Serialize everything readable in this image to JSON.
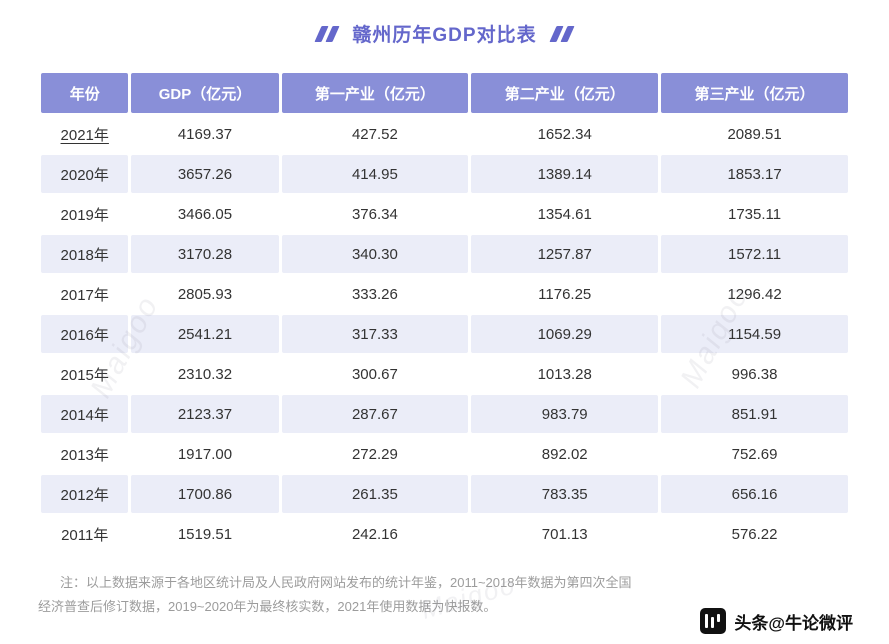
{
  "title": "赣州历年GDP对比表",
  "watermark": "Maigoo",
  "colors": {
    "accent": "#6467cb",
    "header_bg": "#898fd8",
    "row_alt_bg": "#ebedf8",
    "note_text": "#9c9c9c",
    "credit_text": "#111111"
  },
  "table": {
    "headers": [
      "年份",
      "GDP（亿元）",
      "第一产业（亿元）",
      "第二产业（亿元）",
      "第三产业（亿元）"
    ],
    "rows": [
      {
        "cells": [
          "2021年",
          "4169.37",
          "427.52",
          "1652.34",
          "2089.51"
        ],
        "underlined": true
      },
      {
        "cells": [
          "2020年",
          "3657.26",
          "414.95",
          "1389.14",
          "1853.17"
        ]
      },
      {
        "cells": [
          "2019年",
          "3466.05",
          "376.34",
          "1354.61",
          "1735.11"
        ]
      },
      {
        "cells": [
          "2018年",
          "3170.28",
          "340.30",
          "1257.87",
          "1572.11"
        ]
      },
      {
        "cells": [
          "2017年",
          "2805.93",
          "333.26",
          "1176.25",
          "1296.42"
        ]
      },
      {
        "cells": [
          "2016年",
          "2541.21",
          "317.33",
          "1069.29",
          "1154.59"
        ]
      },
      {
        "cells": [
          "2015年",
          "2310.32",
          "300.67",
          "1013.28",
          "996.38"
        ]
      },
      {
        "cells": [
          "2014年",
          "2123.37",
          "287.67",
          "983.79",
          "851.91"
        ]
      },
      {
        "cells": [
          "2013年",
          "1917.00",
          "272.29",
          "892.02",
          "752.69"
        ]
      },
      {
        "cells": [
          "2012年",
          "1700.86",
          "261.35",
          "783.35",
          "656.16"
        ]
      },
      {
        "cells": [
          "2011年",
          "1519.51",
          "242.16",
          "701.13",
          "576.22"
        ]
      }
    ]
  },
  "note": "注：以上数据来源于各地区统计局及人民政府网站发布的统计年鉴，2011~2018年数据为第四次全国经济普查后修订数据，2019~2020年为最终核实数，2021年使用数据为快报数。",
  "footer": {
    "credit": "头条@牛论微评"
  },
  "chart_data": {
    "type": "table",
    "title": "赣州历年GDP对比表",
    "columns": [
      "年份",
      "GDP（亿元）",
      "第一产业（亿元）",
      "第二产业（亿元）",
      "第三产业（亿元）"
    ],
    "rows": [
      [
        "2021年",
        4169.37,
        427.52,
        1652.34,
        2089.51
      ],
      [
        "2020年",
        3657.26,
        414.95,
        1389.14,
        1853.17
      ],
      [
        "2019年",
        3466.05,
        376.34,
        1354.61,
        1735.11
      ],
      [
        "2018年",
        3170.28,
        340.3,
        1257.87,
        1572.11
      ],
      [
        "2017年",
        2805.93,
        333.26,
        1176.25,
        1296.42
      ],
      [
        "2016年",
        2541.21,
        317.33,
        1069.29,
        1154.59
      ],
      [
        "2015年",
        2310.32,
        300.67,
        1013.28,
        996.38
      ],
      [
        "2014年",
        2123.37,
        287.67,
        983.79,
        851.91
      ],
      [
        "2013年",
        1917.0,
        272.29,
        892.02,
        752.69
      ],
      [
        "2012年",
        1700.86,
        261.35,
        783.35,
        656.16
      ],
      [
        "2011年",
        1519.51,
        242.16,
        701.13,
        576.22
      ]
    ]
  }
}
